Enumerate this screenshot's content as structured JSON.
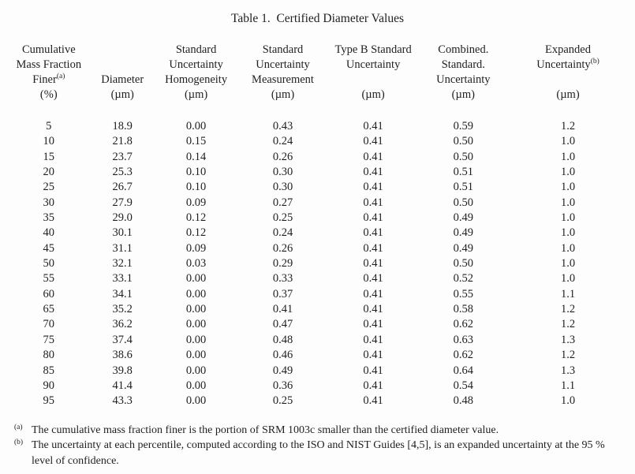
{
  "title": "Table 1.  Certified Diameter Values",
  "colors": {
    "background": "#fdfdfd",
    "text": "#1f1f1f"
  },
  "table": {
    "columns": [
      {
        "lines": [
          "Cumulative",
          "Mass Fraction",
          "Finer"
        ],
        "sup": "(a)",
        "unit": "(%)",
        "align": "top"
      },
      {
        "lines": [
          "Diameter"
        ],
        "sup": "",
        "unit": "(µm)",
        "align": "bottom"
      },
      {
        "lines": [
          "Standard",
          "Uncertainty",
          "Homogeneity"
        ],
        "sup": "",
        "unit": "(µm)",
        "align": "top"
      },
      {
        "lines": [
          "Standard",
          "Uncertainty",
          "Measurement"
        ],
        "sup": "",
        "unit": "(µm)",
        "align": "top"
      },
      {
        "lines": [
          "Type B Standard",
          "Uncertainty"
        ],
        "sup": "",
        "unit": "(µm)",
        "align": "top"
      },
      {
        "lines": [
          "Combined.",
          "Standard.",
          "Uncertainty"
        ],
        "sup": "",
        "unit": "(µm)",
        "align": "top"
      },
      {
        "lines": [
          "Expanded",
          "Uncertainty"
        ],
        "sup": "(b)",
        "unit": "(µm)",
        "align": "top"
      }
    ],
    "rows": [
      [
        "5",
        "18.9",
        "0.00",
        "0.43",
        "0.41",
        "0.59",
        "1.2"
      ],
      [
        "10",
        "21.8",
        "0.15",
        "0.24",
        "0.41",
        "0.50",
        "1.0"
      ],
      [
        "15",
        "23.7",
        "0.14",
        "0.26",
        "0.41",
        "0.50",
        "1.0"
      ],
      [
        "20",
        "25.3",
        "0.10",
        "0.30",
        "0.41",
        "0.51",
        "1.0"
      ],
      [
        "25",
        "26.7",
        "0.10",
        "0.30",
        "0.41",
        "0.51",
        "1.0"
      ],
      [
        "30",
        "27.9",
        "0.09",
        "0.27",
        "0.41",
        "0.50",
        "1.0"
      ],
      [
        "35",
        "29.0",
        "0.12",
        "0.25",
        "0.41",
        "0.49",
        "1.0"
      ],
      [
        "40",
        "30.1",
        "0.12",
        "0.24",
        "0.41",
        "0.49",
        "1.0"
      ],
      [
        "45",
        "31.1",
        "0.09",
        "0.26",
        "0.41",
        "0.49",
        "1.0"
      ],
      [
        "50",
        "32.1",
        "0.03",
        "0.29",
        "0.41",
        "0.50",
        "1.0"
      ],
      [
        "55",
        "33.1",
        "0.00",
        "0.33",
        "0.41",
        "0.52",
        "1.0"
      ],
      [
        "60",
        "34.1",
        "0.00",
        "0.37",
        "0.41",
        "0.55",
        "1.1"
      ],
      [
        "65",
        "35.2",
        "0.00",
        "0.41",
        "0.41",
        "0.58",
        "1.2"
      ],
      [
        "70",
        "36.2",
        "0.00",
        "0.47",
        "0.41",
        "0.62",
        "1.2"
      ],
      [
        "75",
        "37.4",
        "0.00",
        "0.48",
        "0.41",
        "0.63",
        "1.3"
      ],
      [
        "80",
        "38.6",
        "0.00",
        "0.46",
        "0.41",
        "0.62",
        "1.2"
      ],
      [
        "85",
        "39.8",
        "0.00",
        "0.49",
        "0.41",
        "0.64",
        "1.3"
      ],
      [
        "90",
        "41.4",
        "0.00",
        "0.36",
        "0.41",
        "0.54",
        "1.1"
      ],
      [
        "95",
        "43.3",
        "0.00",
        "0.25",
        "0.41",
        "0.48",
        "1.0"
      ]
    ],
    "column_widths_pct": [
      13.2,
      10.6,
      13.2,
      14.8,
      14.4,
      14.7,
      19.1
    ]
  },
  "footnotes": [
    {
      "marker": "(a)",
      "text": "The cumulative mass fraction finer is the portion of SRM 1003c smaller than the certified diameter value."
    },
    {
      "marker": "(b)",
      "text": "The uncertainty at each percentile, computed according to the ISO and NIST Guides [4,5], is an expanded uncertainty at the 95 % level of confidence."
    }
  ]
}
